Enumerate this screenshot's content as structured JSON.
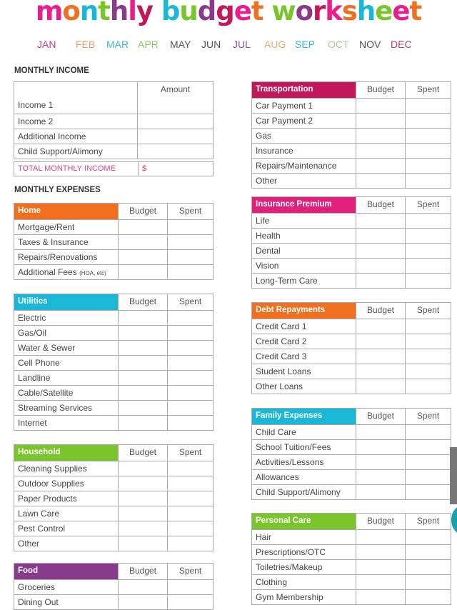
{
  "title": {
    "text": "monthly budget worksheet",
    "letter_colors": [
      "#e91e8c",
      "#f07020",
      "#1ab8d8",
      "#7ac52a",
      "#8a3a8a",
      "#e91e8c",
      "#c2185b",
      "#f07020",
      "#1ab8d8",
      "#7ac52a",
      "#8a3a8a",
      "#c2185b",
      "#e91e8c",
      "#f07020",
      "#1ab8d8",
      "#7ac52a",
      "#8a3a8a",
      "#c2185b",
      "#e91e8c",
      "#f07020",
      "#1ab8d8",
      "#7ac52a"
    ]
  },
  "months": [
    {
      "label": "JAN",
      "color": "#c0408a"
    },
    {
      "label": "FEB",
      "color": "#e8a070"
    },
    {
      "label": "MAR",
      "color": "#40b8d8"
    },
    {
      "label": "APR",
      "color": "#90c860"
    },
    {
      "label": "MAY",
      "color": "#555555"
    },
    {
      "label": "JUN",
      "color": "#555555"
    },
    {
      "label": "JUL",
      "color": "#9050a0"
    },
    {
      "label": "AUG",
      "color": "#e0b070"
    },
    {
      "label": "SEP",
      "color": "#30b8e0"
    },
    {
      "label": "OCT",
      "color": "#a8c890"
    },
    {
      "label": "NOV",
      "color": "#555555"
    },
    {
      "label": "DEC",
      "color": "#b04070"
    }
  ],
  "income": {
    "heading": "MONTHLY INCOME",
    "amount_header": "Amount",
    "rows": [
      "Income 1",
      "Income 2",
      "Additional Income",
      "Child Support/Alimony"
    ],
    "total_label": "TOTAL MONTHLY INCOME",
    "total_value": "$",
    "total_color": "#e0408a"
  },
  "expenses_heading": "MONTHLY EXPENSES",
  "budget_header": "Budget",
  "spent_header": "Spent",
  "tables": [
    {
      "title": "Home",
      "color": "#f07020",
      "rows": [
        "Mortgage/Rent",
        "Taxes & Insurance",
        "Repairs/Renovations",
        "Additional Fees"
      ],
      "note": "(HOA, etc)"
    },
    {
      "title": "Utilities",
      "color": "#1ab8d8",
      "rows": [
        "Electric",
        "Gas/Oil",
        "Water & Sewer",
        "Cell Phone",
        "Landline",
        "Cable/Satellite",
        "Streaming Services",
        "Internet"
      ]
    },
    {
      "title": "Household",
      "color": "#7ac52a",
      "rows": [
        "Cleaning Supplies",
        "Outdoor Supplies",
        "Paper Products",
        "Lawn Care",
        "Pest Control",
        "Other"
      ]
    },
    {
      "title": "Food",
      "color": "#8a3a8a",
      "rows": [
        "Groceries",
        "Dining Out"
      ]
    },
    {
      "title": "Transportation",
      "color": "#c2185b",
      "rows": [
        "Car Payment 1",
        "Car Payment 2",
        "Gas",
        "Insurance",
        "Repairs/Maintenance",
        "Other"
      ]
    },
    {
      "title": "Insurance Premium",
      "color": "#e0207a",
      "rows": [
        "Life",
        "Health",
        "Dental",
        "Vision",
        "Long-Term Care"
      ]
    },
    {
      "title": "Debt Repayments",
      "color": "#f07020",
      "rows": [
        "Credit Card 1",
        "Credit Card 2",
        "Credit Card 3",
        "Student Loans",
        "Other Loans"
      ]
    },
    {
      "title": "Family Expenses",
      "color": "#1ab8d8",
      "rows": [
        "Child Care",
        "School Tuition/Fees",
        "Activities/Lessons",
        "Allowances",
        "Child Support/Alimony"
      ]
    },
    {
      "title": "Personal Care",
      "color": "#7ac52a",
      "rows": [
        "Hair",
        "Prescriptions/OTC",
        "Toiletries/Makeup",
        "Clothing",
        "Gym Membership"
      ]
    }
  ]
}
